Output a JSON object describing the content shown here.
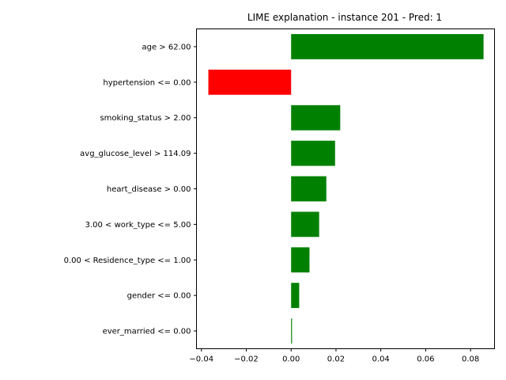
{
  "chart_data": {
    "type": "bar",
    "orientation": "horizontal",
    "title": "LIME explanation - instance 201 - Pred: 1",
    "xlabel": "",
    "ylabel": "",
    "xlim": [
      -0.0422,
      0.0907
    ],
    "xticks": [
      -0.04,
      -0.02,
      0.0,
      0.02,
      0.04,
      0.06,
      0.08
    ],
    "xtick_labels": [
      "−0.04",
      "−0.02",
      "0.00",
      "0.02",
      "0.04",
      "0.06",
      "0.08"
    ],
    "grid": false,
    "legend": false,
    "categories": [
      "age > 62.00",
      "hypertension <= 0.00",
      "smoking_status > 2.00",
      "avg_glucose_level > 114.09",
      "heart_disease > 0.00",
      "3.00 < work_type <= 5.00",
      "0.00 < Residence_type <= 1.00",
      "gender <= 0.00",
      "ever_married <= 0.00"
    ],
    "values": [
      0.0858,
      -0.0369,
      0.0219,
      0.0196,
      0.0157,
      0.0125,
      0.0082,
      0.0036,
      0.0004
    ],
    "colors": {
      "positive": "#008000",
      "negative": "#ff0000",
      "axis": "#000000"
    }
  }
}
